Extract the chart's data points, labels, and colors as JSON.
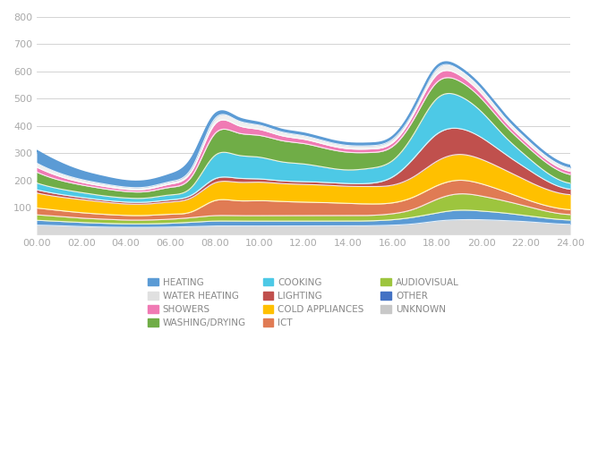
{
  "x_hours": [
    0,
    1,
    2,
    3,
    4,
    5,
    6,
    7,
    8,
    9,
    10,
    11,
    12,
    13,
    14,
    15,
    16,
    17,
    18,
    19,
    20,
    21,
    22,
    23,
    24
  ],
  "x_ticks": [
    0,
    2,
    4,
    6,
    8,
    10,
    12,
    14,
    16,
    18,
    20,
    22,
    24
  ],
  "x_tick_labels": [
    "00.00",
    "02.00",
    "04.00",
    "06.00",
    "08.00",
    "10.00",
    "12.00",
    "14.00",
    "16.00",
    "18.00",
    "20.00",
    "22.00",
    "24.00"
  ],
  "ylim": [
    0,
    800
  ],
  "yticks": [
    0,
    100,
    200,
    300,
    400,
    500,
    600,
    700,
    800
  ],
  "series": {
    "UNKNOWN": [
      35,
      33,
      30,
      28,
      27,
      27,
      28,
      30,
      32,
      32,
      32,
      32,
      32,
      32,
      32,
      33,
      35,
      40,
      50,
      55,
      55,
      52,
      48,
      42,
      38
    ],
    "OTHER": [
      18,
      16,
      15,
      14,
      13,
      13,
      14,
      16,
      18,
      18,
      18,
      18,
      18,
      18,
      18,
      18,
      20,
      25,
      30,
      35,
      32,
      28,
      22,
      18,
      16
    ],
    "AUDIOVISUAL": [
      20,
      18,
      16,
      15,
      14,
      14,
      15,
      17,
      20,
      20,
      20,
      20,
      20,
      20,
      20,
      20,
      22,
      30,
      50,
      60,
      55,
      45,
      35,
      25,
      20
    ],
    "ICT": [
      25,
      22,
      20,
      18,
      17,
      17,
      18,
      22,
      55,
      55,
      55,
      52,
      50,
      48,
      45,
      42,
      40,
      45,
      50,
      50,
      45,
      35,
      25,
      20,
      18
    ],
    "COLD APPLIANCES": [
      55,
      50,
      48,
      45,
      42,
      42,
      45,
      52,
      65,
      68,
      68,
      66,
      65,
      64,
      63,
      64,
      65,
      75,
      90,
      95,
      90,
      80,
      70,
      60,
      55
    ],
    "LIGHTING": [
      12,
      10,
      8,
      7,
      7,
      7,
      8,
      10,
      15,
      15,
      12,
      10,
      10,
      10,
      10,
      12,
      30,
      70,
      100,
      95,
      80,
      60,
      45,
      30,
      20
    ],
    "COOKING": [
      25,
      20,
      18,
      16,
      15,
      15,
      18,
      30,
      85,
      85,
      80,
      70,
      65,
      55,
      50,
      55,
      60,
      90,
      130,
      120,
      95,
      65,
      45,
      30,
      22
    ],
    "WASHING/DRYING": [
      40,
      32,
      28,
      26,
      24,
      24,
      28,
      40,
      80,
      82,
      80,
      78,
      75,
      70,
      65,
      58,
      52,
      55,
      60,
      55,
      48,
      42,
      38,
      35,
      32
    ],
    "SHOWERS": [
      18,
      14,
      10,
      9,
      8,
      9,
      12,
      20,
      35,
      28,
      22,
      18,
      16,
      14,
      13,
      13,
      14,
      20,
      28,
      22,
      18,
      15,
      13,
      12,
      12
    ],
    "WATER HEATING": [
      15,
      12,
      10,
      9,
      8,
      8,
      9,
      12,
      20,
      18,
      16,
      14,
      13,
      12,
      12,
      12,
      13,
      16,
      22,
      20,
      18,
      15,
      13,
      12,
      12
    ],
    "HEATING": [
      45,
      38,
      30,
      25,
      22,
      22,
      25,
      35,
      15,
      10,
      8,
      8,
      8,
      8,
      8,
      8,
      8,
      8,
      8,
      8,
      8,
      8,
      8,
      8,
      8
    ]
  },
  "color_map": {
    "UNKNOWN": "#d8d8d8",
    "OTHER": "#5b9bd5",
    "AUDIOVISUAL": "#9dc53e",
    "ICT": "#e07b54",
    "COLD APPLIANCES": "#ffc000",
    "LIGHTING": "#c0504d",
    "COOKING": "#4dc9e6",
    "WASHING/DRYING": "#70ad47",
    "SHOWERS": "#f07ab4",
    "WATER HEATING": "#f0f0f0",
    "HEATING": "#5b9bd5"
  },
  "stack_order": [
    "UNKNOWN",
    "OTHER",
    "AUDIOVISUAL",
    "ICT",
    "COLD APPLIANCES",
    "LIGHTING",
    "COOKING",
    "WASHING/DRYING",
    "SHOWERS",
    "WATER HEATING",
    "HEATING"
  ],
  "legend_entries": [
    [
      "HEATING",
      "#5b9bd5"
    ],
    [
      "WATER HEATING",
      "#e0e0e0"
    ],
    [
      "SHOWERS",
      "#f07ab4"
    ],
    [
      "WASHING/DRYING",
      "#70ad47"
    ],
    [
      "COOKING",
      "#4dc9e6"
    ],
    [
      "LIGHTING",
      "#c0504d"
    ],
    [
      "COLD APPLIANCES",
      "#ffc000"
    ],
    [
      "ICT",
      "#e07b54"
    ],
    [
      "AUDIOVISUAL",
      "#9dc53e"
    ],
    [
      "OTHER",
      "#4472c4"
    ],
    [
      "UNKNOWN",
      "#c8c8c8"
    ]
  ],
  "background_color": "#ffffff",
  "grid_color": "#cccccc"
}
